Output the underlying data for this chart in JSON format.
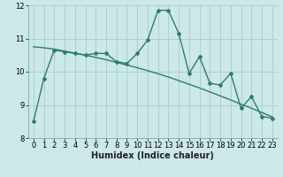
{
  "xlabel": "Humidex (Indice chaleur)",
  "background_color": "#cce8e8",
  "line_color": "#2e7d6e",
  "grid_color": "#aacccc",
  "x_data": [
    0,
    1,
    2,
    3,
    4,
    5,
    6,
    7,
    8,
    9,
    10,
    11,
    12,
    13,
    14,
    15,
    16,
    17,
    18,
    19,
    20,
    21,
    22,
    23
  ],
  "y_jagged": [
    8.5,
    9.8,
    10.65,
    10.6,
    10.55,
    10.5,
    10.55,
    10.55,
    10.3,
    10.25,
    10.55,
    10.95,
    11.85,
    11.85,
    11.15,
    9.95,
    10.45,
    9.65,
    9.6,
    9.95,
    8.9,
    9.25,
    8.65,
    8.6
  ],
  "y_smooth": [
    10.75,
    10.72,
    10.68,
    10.62,
    10.56,
    10.5,
    10.43,
    10.36,
    10.28,
    10.2,
    10.12,
    10.03,
    9.94,
    9.84,
    9.73,
    9.62,
    9.51,
    9.39,
    9.27,
    9.15,
    9.02,
    8.9,
    8.77,
    8.64
  ],
  "ylim": [
    8,
    12
  ],
  "xlim": [
    -0.5,
    23.5
  ],
  "yticks": [
    8,
    9,
    10,
    11,
    12
  ],
  "xticks": [
    0,
    1,
    2,
    3,
    4,
    5,
    6,
    7,
    8,
    9,
    10,
    11,
    12,
    13,
    14,
    15,
    16,
    17,
    18,
    19,
    20,
    21,
    22,
    23
  ],
  "xlabel_fontsize": 7,
  "tick_labelsize": 6
}
